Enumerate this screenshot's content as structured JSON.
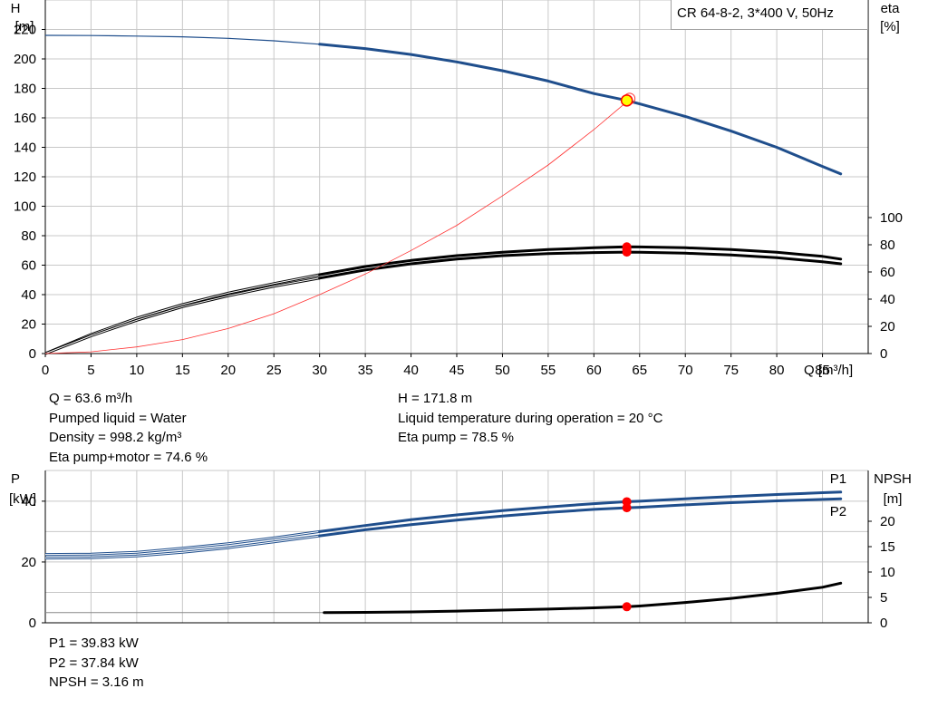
{
  "title": "CR 64-8-2, 3*400 V, 50Hz",
  "info_top": {
    "left": [
      "Q = 63.6 m³/h",
      "Pumped liquid = Water",
      "Density = 998.2 kg/m³",
      "Eta pump+motor = 74.6 %"
    ],
    "right": [
      "H = 171.8 m",
      "Liquid temperature during operation = 20 °C",
      "Eta pump = 78.5 %"
    ]
  },
  "info_bottom": [
    "P1 = 39.83 kW",
    "P2 = 37.84 kW",
    "NPSH = 3.16 m"
  ],
  "colors": {
    "head": "#1f4e8c",
    "efficiency": "#000000",
    "system": "#ff3030",
    "marker": "#ff0000",
    "duty": "#ffff00",
    "power": "#1f4e8c",
    "npsh": "#000000"
  },
  "chart_data": [
    {
      "type": "line",
      "name": "head-efficiency",
      "xlabel": "Q [m³/h]",
      "ylabel_left": [
        "H",
        "[m]"
      ],
      "ylabel_right": [
        "eta",
        "[%]"
      ],
      "xlim": [
        0,
        90
      ],
      "ylim_left": [
        0,
        240
      ],
      "ylim_right": [
        0,
        100
      ],
      "x_ticks": [
        0,
        5,
        10,
        15,
        20,
        25,
        30,
        35,
        40,
        45,
        50,
        55,
        60,
        65,
        70,
        75,
        80,
        85
      ],
      "y_ticks_left": [
        0,
        20,
        40,
        60,
        80,
        100,
        120,
        140,
        160,
        180,
        200,
        220
      ],
      "y_ticks_right": [
        0,
        20,
        40,
        60,
        80,
        100
      ],
      "grid": true,
      "series": [
        {
          "role": "head",
          "axis": "left",
          "x": [
            0,
            5,
            10,
            15,
            20,
            25,
            30,
            35,
            40,
            45,
            50,
            55,
            60,
            63.6,
            65,
            70,
            75,
            80,
            85,
            87
          ],
          "y": [
            216,
            215.9,
            215.5,
            215,
            214,
            212.3,
            210,
            207,
            203,
            198,
            192,
            185,
            176.5,
            171.8,
            169.5,
            161,
            151,
            140,
            127,
            122
          ],
          "thick_from": 30.5
        },
        {
          "role": "eta-pump",
          "axis": "left",
          "x": [
            0,
            5,
            10,
            15,
            20,
            25,
            30,
            35,
            40,
            45,
            50,
            55,
            60,
            63.6,
            65,
            70,
            75,
            80,
            85,
            87
          ],
          "y": [
            0,
            14,
            26,
            36,
            44.5,
            51.5,
            58,
            64,
            68.5,
            72,
            74.5,
            76.5,
            77.8,
            78.5,
            78.4,
            77.8,
            76.5,
            74.5,
            71.5,
            69.5
          ],
          "thick_from": 30.5
        },
        {
          "role": "eta-total",
          "axis": "left",
          "x": [
            0,
            5,
            10,
            15,
            20,
            25,
            30,
            35,
            40,
            45,
            50,
            55,
            60,
            63.6,
            65,
            70,
            75,
            80,
            85,
            87
          ],
          "y": [
            0,
            13,
            24.5,
            34.5,
            42.5,
            49.5,
            55.5,
            61.5,
            66,
            69.5,
            72,
            73.5,
            74.3,
            74.6,
            74.5,
            73.8,
            72.5,
            70.5,
            67.5,
            66
          ],
          "thick_from": 30.5
        },
        {
          "role": "system",
          "axis": "left",
          "x": [
            0,
            5,
            10,
            15,
            20,
            25,
            30,
            35,
            40,
            45,
            50,
            55,
            60,
            64
          ],
          "y": [
            0,
            1.2,
            4.5,
            9.5,
            17,
            27,
            40,
            54,
            70,
            87,
            107,
            128,
            152,
            173
          ]
        }
      ],
      "duty_point": {
        "x": 63.6,
        "y": 171.8
      },
      "markers": [
        {
          "x": 63.6,
          "y": 78.5
        },
        {
          "x": 63.6,
          "y": 76.5
        },
        {
          "x": 63.6,
          "y": 74.6
        }
      ]
    },
    {
      "type": "line",
      "name": "power-npsh",
      "ylabel_left": [
        "P",
        "[kW]"
      ],
      "ylabel_right": [
        "NPSH",
        "[m]"
      ],
      "xlim": [
        0,
        90
      ],
      "ylim_left": [
        0,
        50
      ],
      "ylim_right": [
        0,
        25
      ],
      "y_ticks_left": [
        0,
        20,
        40
      ],
      "y_ticks_right": [
        0,
        5,
        10,
        15,
        20
      ],
      "grid": true,
      "series": [
        {
          "name": "P1",
          "role": "p1",
          "axis": "left",
          "x": [
            0,
            5,
            10,
            15,
            20,
            25,
            30,
            35,
            40,
            45,
            50,
            55,
            60,
            63.6,
            65,
            70,
            75,
            80,
            85,
            87
          ],
          "y": [
            22.5,
            22.6,
            23.2,
            24.5,
            26,
            27.9,
            30,
            32,
            33.9,
            35.5,
            36.9,
            38.1,
            39.2,
            39.83,
            40,
            40.8,
            41.5,
            42.2,
            42.8,
            43
          ],
          "thick_from": 30.5
        },
        {
          "name": "P2",
          "role": "p2",
          "axis": "left",
          "x": [
            0,
            5,
            10,
            15,
            20,
            25,
            30,
            35,
            40,
            45,
            50,
            55,
            60,
            63.6,
            65,
            70,
            75,
            80,
            85,
            87
          ],
          "y": [
            21.3,
            21.4,
            22,
            23.2,
            24.7,
            26.6,
            28.6,
            30.6,
            32.3,
            33.8,
            35.1,
            36.3,
            37.3,
            37.84,
            38,
            38.8,
            39.5,
            40.1,
            40.6,
            40.8
          ],
          "thick_from": 30.5
        },
        {
          "role": "npsh",
          "axis": "right",
          "x": [
            30.5,
            35,
            40,
            45,
            50,
            55,
            60,
            63.6,
            65,
            70,
            75,
            80,
            85,
            87
          ],
          "y": [
            2.0,
            2.05,
            2.15,
            2.3,
            2.5,
            2.7,
            2.95,
            3.16,
            3.3,
            4.0,
            4.8,
            5.8,
            7.0,
            7.8
          ]
        }
      ],
      "markers": [
        {
          "x": 63.6,
          "y": 39.83,
          "axis": "left"
        },
        {
          "x": 63.6,
          "y": 37.84,
          "axis": "left"
        },
        {
          "x": 63.6,
          "y": 3.16,
          "axis": "right"
        }
      ]
    }
  ]
}
